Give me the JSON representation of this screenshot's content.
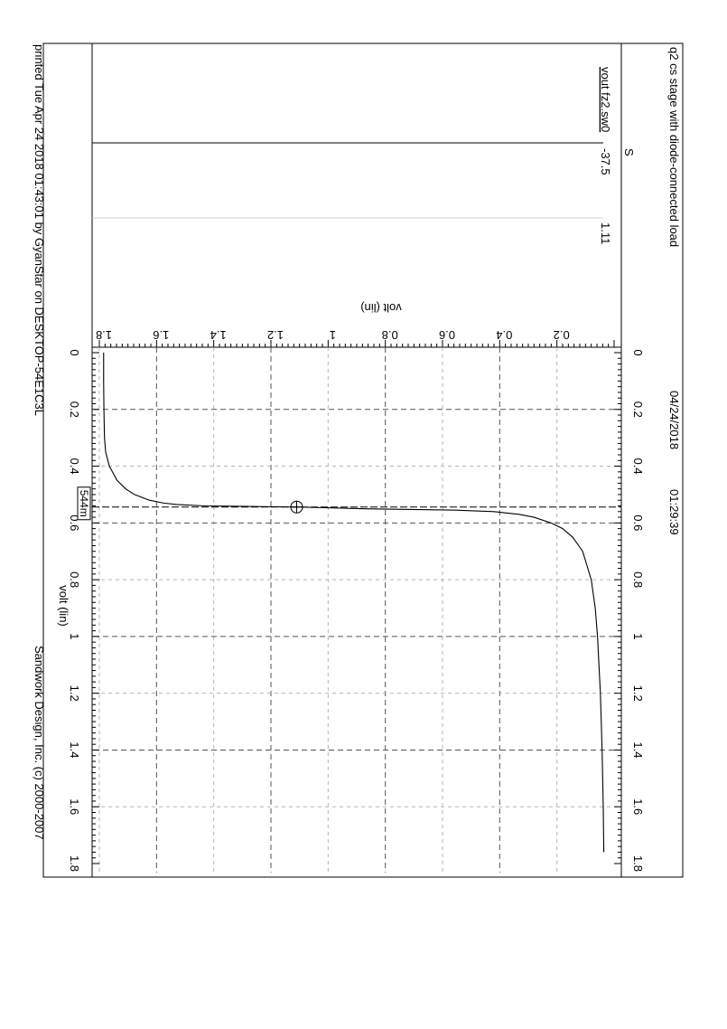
{
  "header": {
    "title": "q2 cs stage with diode-connected load",
    "date": "04/24/2018",
    "time": "01:29:39"
  },
  "footer": {
    "printed": "printed Tue Apr 24 2018 01:43:01 by GyanStar on DESKTOP-54E1C3L",
    "copyright": "Sandwork Design, Inc. (c) 2000-2007"
  },
  "legend": {
    "marker": "S",
    "trace_label": "vout fz2.sw0",
    "values": [
      "-37.5",
      "1.11"
    ]
  },
  "cursor_readout": "544m",
  "chart_data": {
    "type": "line",
    "title": "q2 cs stage with diode-connected load",
    "xlabel": "volt (lin)",
    "ylabel": "volt (lin)",
    "xlim": [
      0,
      1.8
    ],
    "ylim": [
      0,
      1.8
    ],
    "x_ticks": [
      "0",
      "0.2",
      "0.4",
      "0.6",
      "0.8",
      "1",
      "1.2",
      "1.4",
      "1.6",
      "1.8"
    ],
    "y_ticks": [
      "0.2",
      "0.4",
      "0.6",
      "0.8",
      "1",
      "1.2",
      "1.4",
      "1.6",
      "1.8"
    ],
    "grid": true,
    "cursor": {
      "x": 0.544,
      "y": 1.11
    },
    "series": [
      {
        "name": "vout fz2.sw0",
        "x": [
          0.0,
          0.1,
          0.2,
          0.3,
          0.35,
          0.4,
          0.45,
          0.48,
          0.5,
          0.52,
          0.53,
          0.535,
          0.54,
          0.544,
          0.55,
          0.555,
          0.56,
          0.57,
          0.58,
          0.6,
          0.62,
          0.65,
          0.7,
          0.8,
          0.9,
          1.0,
          1.2,
          1.4,
          1.6,
          1.76
        ],
        "values": [
          1.785,
          1.785,
          1.784,
          1.782,
          1.778,
          1.765,
          1.738,
          1.708,
          1.677,
          1.625,
          1.575,
          1.53,
          1.43,
          1.11,
          0.87,
          0.55,
          0.42,
          0.33,
          0.28,
          0.22,
          0.18,
          0.145,
          0.11,
          0.08,
          0.066,
          0.058,
          0.048,
          0.042,
          0.038,
          0.036
        ]
      }
    ]
  }
}
